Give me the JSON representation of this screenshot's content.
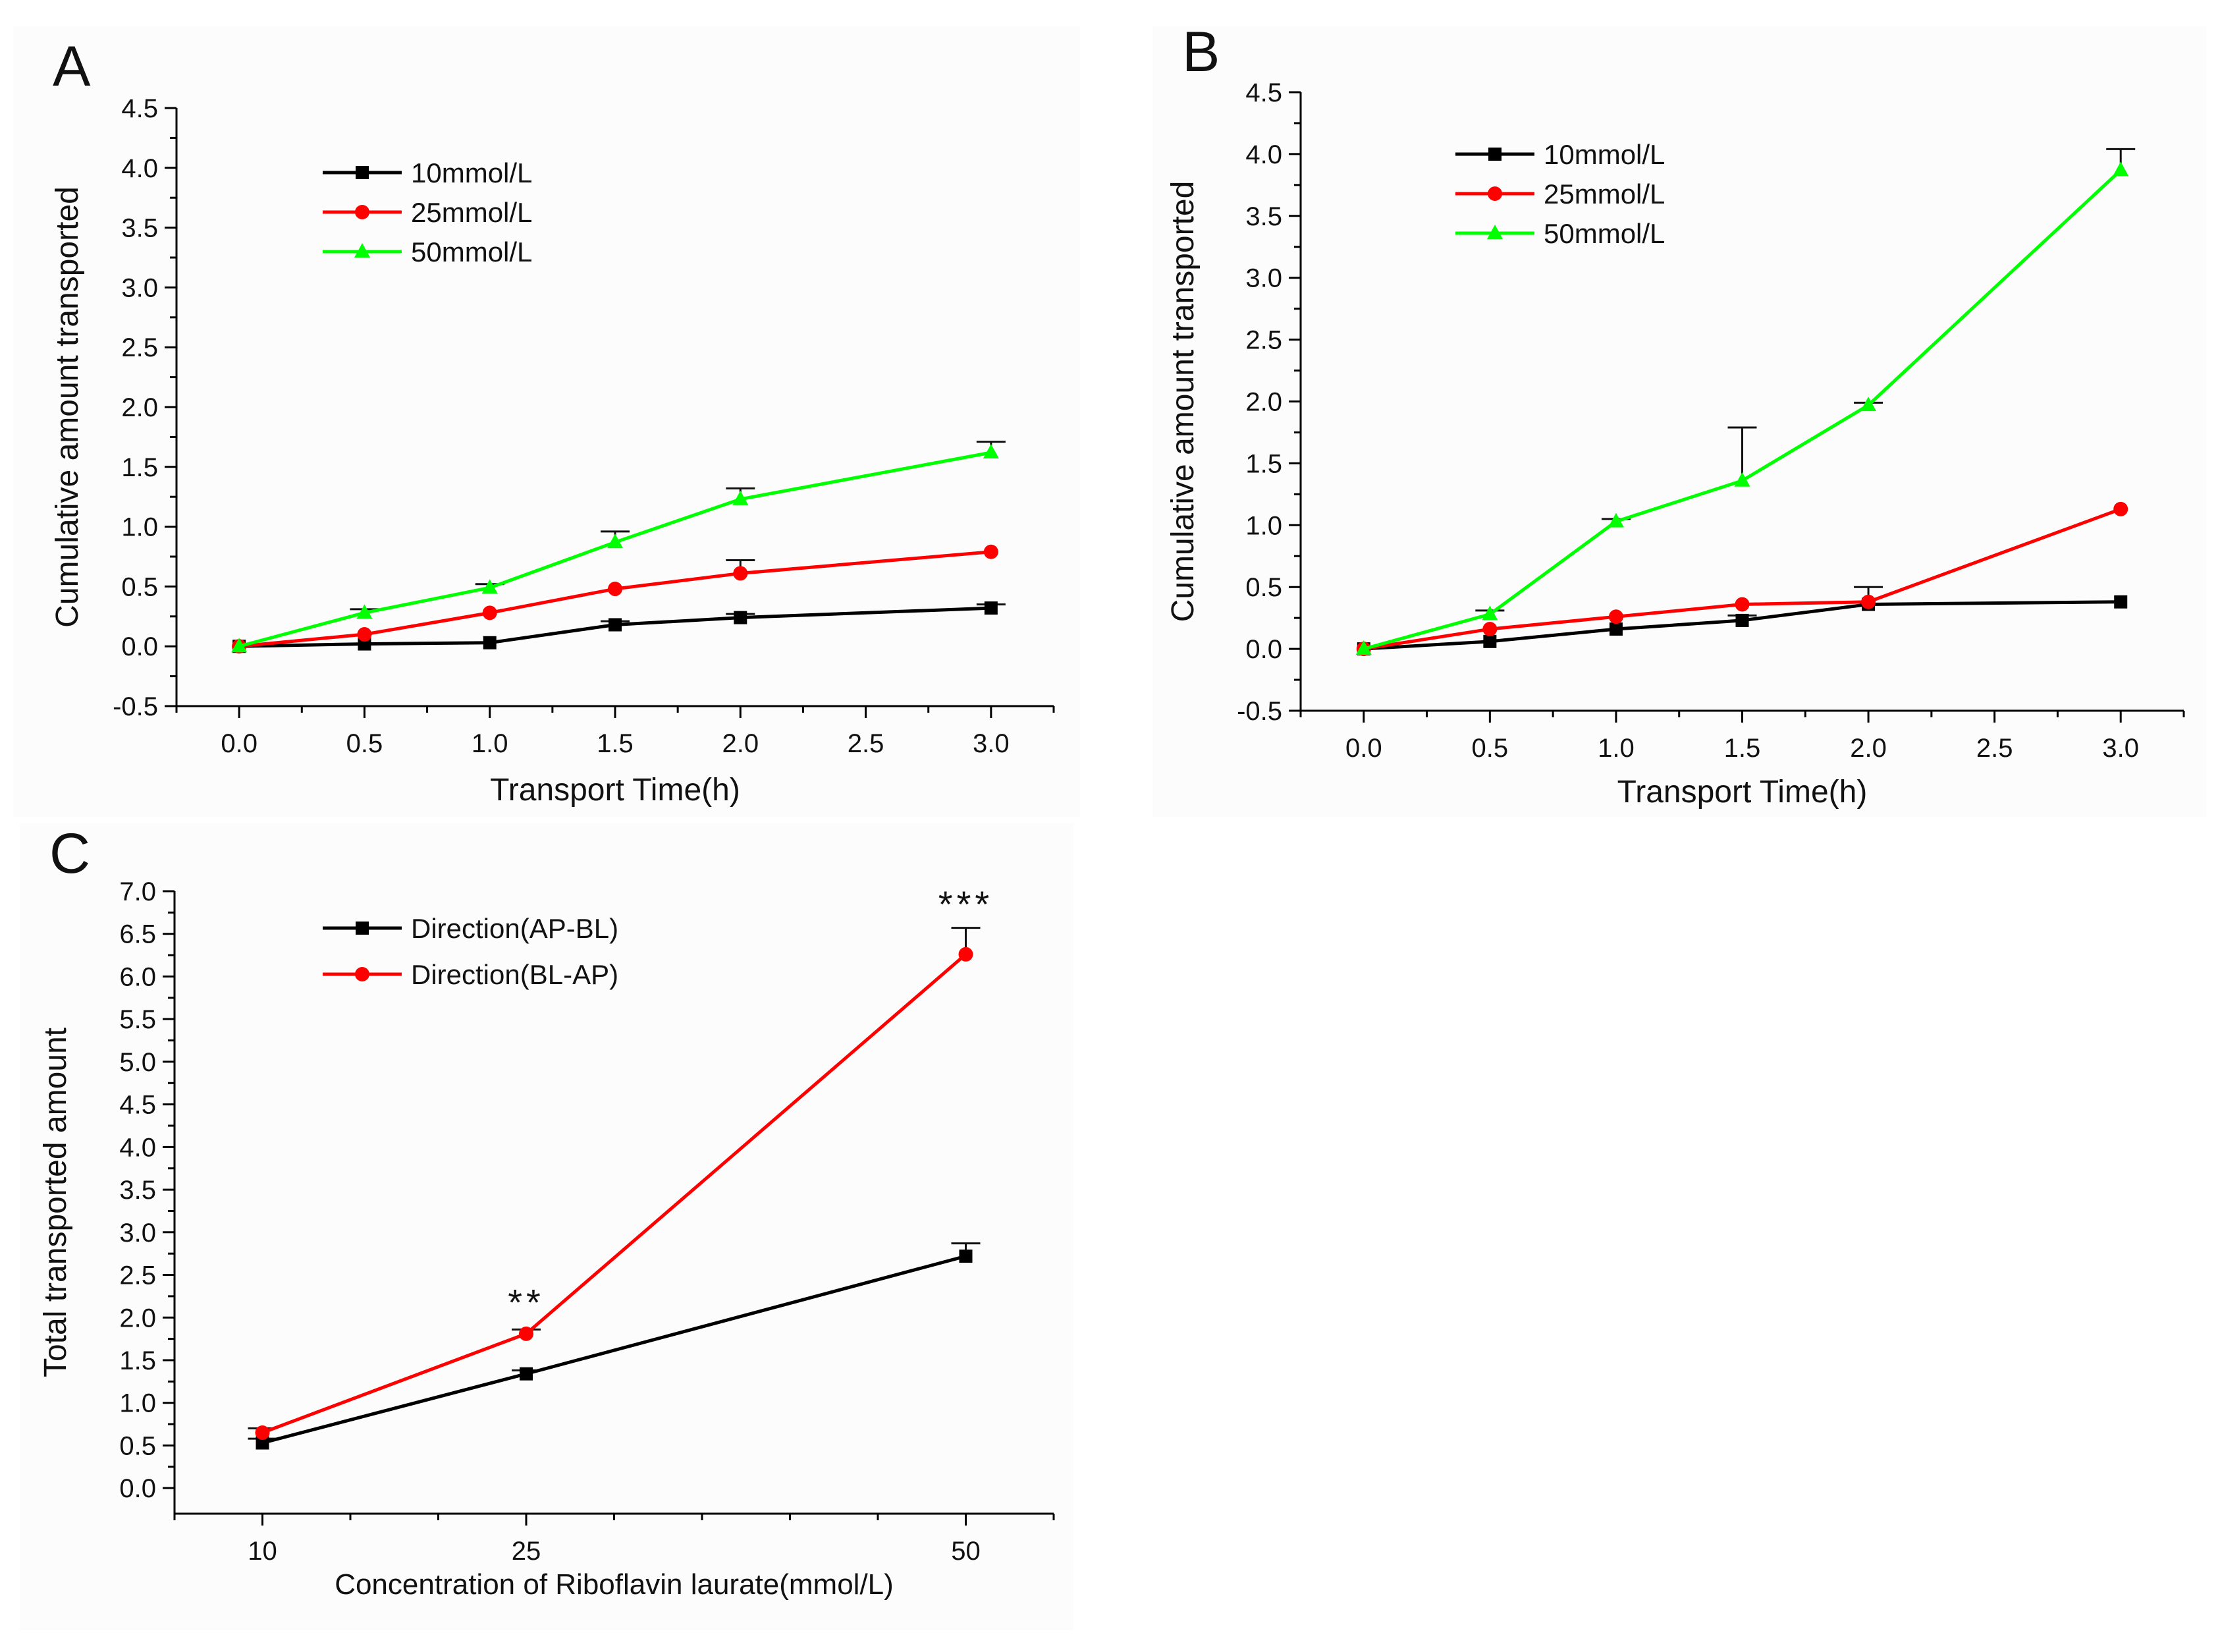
{
  "chart_data": [
    {
      "id": "A",
      "panel_label": "A",
      "type": "line",
      "xlabel": "Transport Time(h)",
      "ylabel": "Cumulative amount transported",
      "xlim": [
        -0.25,
        3.25
      ],
      "ylim": [
        -0.5,
        4.5
      ],
      "xticks": [
        "0.0",
        "0.5",
        "1.0",
        "1.5",
        "2.0",
        "2.5",
        "3.0"
      ],
      "yticks": [
        "-0.5",
        "0.0",
        "0.5",
        "1.0",
        "1.5",
        "2.0",
        "2.5",
        "3.0",
        "3.5",
        "4.0",
        "4.5"
      ],
      "legend_position": "top-left",
      "series": [
        {
          "name": "10mmol/L",
          "color": "#000000",
          "marker": "square",
          "x": [
            0,
            0.5,
            1.0,
            1.5,
            2.0,
            3.0
          ],
          "values": [
            0.0,
            0.02,
            0.03,
            0.18,
            0.24,
            0.32
          ],
          "errors": [
            0.0,
            0.0,
            0.0,
            0.03,
            0.03,
            0.03
          ]
        },
        {
          "name": "25mmol/L",
          "color": "#ff0000",
          "marker": "circle",
          "x": [
            0,
            0.5,
            1.0,
            1.5,
            2.0,
            3.0
          ],
          "values": [
            0.0,
            0.1,
            0.28,
            0.48,
            0.61,
            0.79
          ],
          "errors": [
            0.0,
            0.0,
            0.0,
            0.0,
            0.11,
            0.0
          ]
        },
        {
          "name": "50mmol/L",
          "color": "#00ff00",
          "marker": "triangle",
          "x": [
            0,
            0.5,
            1.0,
            1.5,
            2.0,
            3.0
          ],
          "values": [
            0.0,
            0.28,
            0.49,
            0.87,
            1.23,
            1.62
          ],
          "errors": [
            0.0,
            0.03,
            0.03,
            0.09,
            0.09,
            0.09
          ]
        }
      ]
    },
    {
      "id": "B",
      "panel_label": "B",
      "type": "line",
      "xlabel": "Transport Time(h)",
      "ylabel": "Cumulative amount transported",
      "xlim": [
        -0.25,
        3.25
      ],
      "ylim": [
        -0.5,
        4.5
      ],
      "xticks": [
        "0.0",
        "0.5",
        "1.0",
        "1.5",
        "2.0",
        "2.5",
        "3.0"
      ],
      "yticks": [
        "-0.5",
        "0.0",
        "0.5",
        "1.0",
        "1.5",
        "2.0",
        "2.5",
        "3.0",
        "3.5",
        "4.0",
        "4.5"
      ],
      "legend_position": "top-left",
      "series": [
        {
          "name": "10mmol/L",
          "color": "#000000",
          "marker": "square",
          "x": [
            0,
            0.5,
            1.0,
            1.5,
            2.0,
            3.0
          ],
          "values": [
            0.0,
            0.06,
            0.16,
            0.23,
            0.36,
            0.38
          ],
          "errors": [
            0.0,
            0.0,
            0.0,
            0.04,
            0.14,
            0.0
          ]
        },
        {
          "name": "25mmol/L",
          "color": "#ff0000",
          "marker": "circle",
          "x": [
            0,
            0.5,
            1.0,
            1.5,
            2.0,
            3.0
          ],
          "values": [
            0.0,
            0.16,
            0.26,
            0.36,
            0.38,
            1.13
          ],
          "errors": [
            0.0,
            0.0,
            0.0,
            0.0,
            0.0,
            0.0
          ]
        },
        {
          "name": "50mmol/L",
          "color": "#00ff00",
          "marker": "triangle",
          "x": [
            0,
            0.5,
            1.0,
            1.5,
            2.0,
            3.0
          ],
          "values": [
            0.0,
            0.28,
            1.03,
            1.36,
            1.97,
            3.87
          ],
          "errors": [
            0.0,
            0.03,
            0.02,
            0.43,
            0.02,
            0.17
          ]
        }
      ]
    },
    {
      "id": "C",
      "panel_label": "C",
      "type": "line",
      "xlabel": "Concentration of Riboflavin laurate(mmol/L)",
      "ylabel": "Total transported amount",
      "xlim": [
        5,
        55
      ],
      "ylim": [
        -0.3,
        7.0
      ],
      "xticks": [
        "10",
        "25",
        "50"
      ],
      "yticks": [
        "0.0",
        "0.5",
        "1.0",
        "1.5",
        "2.0",
        "2.5",
        "3.0",
        "3.5",
        "4.0",
        "4.5",
        "5.0",
        "5.5",
        "6.0",
        "6.5",
        "7.0"
      ],
      "legend_position": "top-left",
      "series": [
        {
          "name": "Direction(AP-BL)",
          "color": "#000000",
          "marker": "square",
          "x": [
            10,
            25,
            50
          ],
          "values": [
            0.53,
            1.34,
            2.72
          ],
          "errors": [
            0.05,
            0.04,
            0.15
          ]
        },
        {
          "name": "Direction(BL-AP)",
          "color": "#ff0000",
          "marker": "circle",
          "x": [
            10,
            25,
            50
          ],
          "values": [
            0.65,
            1.81,
            6.26
          ],
          "errors": [
            0.05,
            0.05,
            0.31
          ]
        }
      ],
      "annotations": [
        {
          "x": 25,
          "y": 2.03,
          "text": "**"
        },
        {
          "x": 50,
          "y": 6.7,
          "text": "***"
        }
      ]
    }
  ]
}
